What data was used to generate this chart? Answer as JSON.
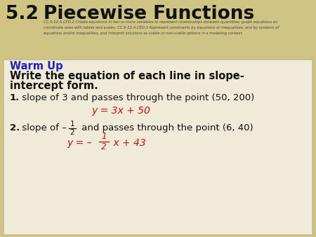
{
  "bg_color": "#cfc483",
  "content_bg": "#f0ead8",
  "content_border": "#b8b090",
  "title_number": "5.2",
  "title_text": "Piecewise Functions",
  "subtitle_text": "CC.9-12.A.CED.2 Create equations in two or more variables to represent relationships between quantities; graph equations on coordinate axes with labels and scales. CC.9-12.A.CED.3 Represent constraints by equations or inequalities, and by systems of equations and/or inequalities, and interpret solutions as viable or non-viable options in a modeling context.",
  "warm_up_label": "Warm Up",
  "warm_up_color": "#2222bb",
  "q1_label": "1.",
  "q1_text": " slope of 3 and passes through the point (50, 200)",
  "q1_answer": "y = 3x + 50",
  "q2_label": "2.",
  "q2_prefix": " slope of –",
  "q2_suffix": " and passes through the point (6, 40)",
  "q2_ans_prefix": "y = – ",
  "q2_ans_suffix": " x + 43",
  "answer_color": "#cc1111",
  "text_color": "#111111",
  "title_color": "#111111",
  "subtitle_color": "#444444"
}
